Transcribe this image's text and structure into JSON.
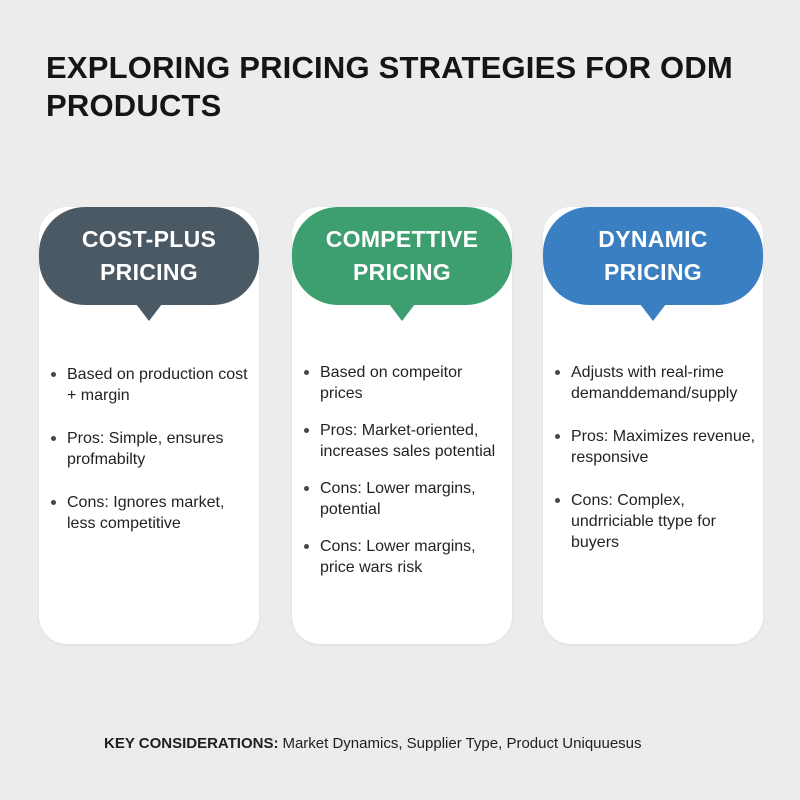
{
  "title": "EXPLORING PRICING STRATEGIES FOR ODM PRODUCTS",
  "cards": [
    {
      "title": "COST-PLUS PRICING",
      "color": "#4a5964",
      "items": [
        "Based on production cost + margin",
        "Pros: Simple, ensures profmabilty",
        "Cons: Ignores market, less competitive"
      ]
    },
    {
      "title": "COMPETTIVE PRICING",
      "color": "#3d9f6f",
      "items": [
        "Based on compeitor prices",
        "Pros: Market-oriented, increases sales potential",
        "Cons: Lower margins, potential",
        "Cons: Lower margins, price wars risk"
      ]
    },
    {
      "title": "DYNAMIC PRICING",
      "color": "#3a7fc1",
      "items": [
        "Adjusts with real-rime demanddemand/supply",
        "Pros: Maximizes revenue, responsive",
        "Cons: Complex, undrriciable ttype for buyers"
      ]
    }
  ],
  "footer": {
    "label": "KEY CONSIDERATIONS:",
    "text": "Market Dynamics, Supplier Type, Product Uniquuesus"
  }
}
